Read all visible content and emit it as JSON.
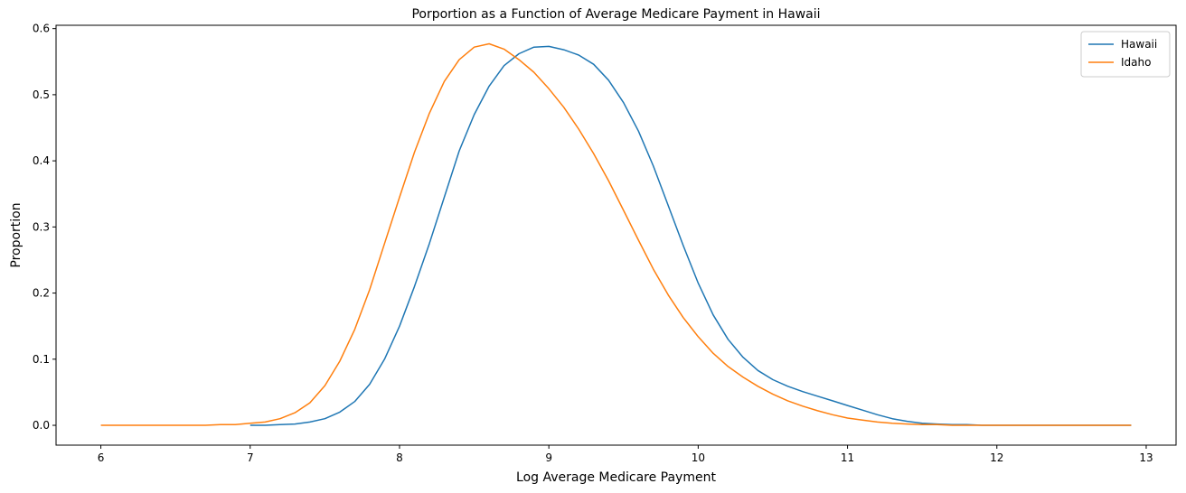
{
  "chart_data": {
    "type": "line",
    "title": "Porportion as a Function of Average Medicare Payment in Hawaii",
    "xlabel": "Log Average Medicare Payment",
    "ylabel": "Proportion",
    "xlim": [
      5.7,
      13.2
    ],
    "ylim": [
      -0.03,
      0.605
    ],
    "xticks": [
      6,
      7,
      8,
      9,
      10,
      11,
      12,
      13
    ],
    "yticks": [
      0.0,
      0.1,
      0.2,
      0.3,
      0.4,
      0.5,
      0.6
    ],
    "ytick_labels": [
      "0.0",
      "0.1",
      "0.2",
      "0.3",
      "0.4",
      "0.5",
      "0.6"
    ],
    "grid": false,
    "legend_position": "top-right",
    "series": [
      {
        "name": "Hawaii",
        "color": "#1f77b4",
        "x": [
          7.0,
          7.1,
          7.2,
          7.3,
          7.4,
          7.5,
          7.6,
          7.7,
          7.8,
          7.9,
          8.0,
          8.1,
          8.2,
          8.3,
          8.4,
          8.5,
          8.6,
          8.7,
          8.8,
          8.9,
          9.0,
          9.1,
          9.2,
          9.3,
          9.4,
          9.5,
          9.6,
          9.7,
          9.8,
          9.9,
          10.0,
          10.1,
          10.2,
          10.3,
          10.4,
          10.5,
          10.6,
          10.7,
          10.8,
          10.9,
          11.0,
          11.1,
          11.2,
          11.3,
          11.4,
          11.5,
          11.6,
          11.7,
          11.8,
          11.9,
          12.0,
          12.1,
          12.2,
          12.3,
          12.4,
          12.5,
          12.6,
          12.7,
          12.8,
          12.9
        ],
        "y": [
          0.0,
          0.0,
          0.001,
          0.002,
          0.005,
          0.01,
          0.02,
          0.036,
          0.062,
          0.1,
          0.15,
          0.21,
          0.275,
          0.345,
          0.415,
          0.47,
          0.513,
          0.544,
          0.562,
          0.572,
          0.573,
          0.568,
          0.56,
          0.546,
          0.522,
          0.488,
          0.445,
          0.392,
          0.332,
          0.272,
          0.215,
          0.167,
          0.13,
          0.103,
          0.083,
          0.069,
          0.059,
          0.051,
          0.044,
          0.037,
          0.03,
          0.023,
          0.016,
          0.01,
          0.006,
          0.003,
          0.002,
          0.001,
          0.001,
          0.0,
          0.0,
          0.0,
          0.0,
          0.0,
          0.0,
          0.0,
          0.0,
          0.0,
          0.0,
          0.0
        ]
      },
      {
        "name": "Idaho",
        "color": "#ff7f0e",
        "x": [
          6.0,
          6.1,
          6.2,
          6.3,
          6.4,
          6.5,
          6.6,
          6.7,
          6.8,
          6.9,
          7.0,
          7.1,
          7.2,
          7.3,
          7.4,
          7.5,
          7.6,
          7.7,
          7.8,
          7.9,
          8.0,
          8.1,
          8.2,
          8.3,
          8.4,
          8.5,
          8.6,
          8.7,
          8.8,
          8.9,
          9.0,
          9.1,
          9.2,
          9.3,
          9.4,
          9.5,
          9.6,
          9.7,
          9.8,
          9.9,
          10.0,
          10.1,
          10.2,
          10.3,
          10.4,
          10.5,
          10.6,
          10.7,
          10.8,
          10.9,
          11.0,
          11.1,
          11.2,
          11.3,
          11.4,
          11.5,
          11.6,
          11.7,
          11.8,
          11.9,
          12.0,
          12.1,
          12.2,
          12.3,
          12.4,
          12.5,
          12.6,
          12.7,
          12.8,
          12.9
        ],
        "y": [
          0.0,
          0.0,
          0.0,
          0.0,
          0.0,
          0.0,
          0.0,
          0.0,
          0.001,
          0.001,
          0.003,
          0.005,
          0.01,
          0.019,
          0.034,
          0.06,
          0.097,
          0.145,
          0.205,
          0.275,
          0.345,
          0.413,
          0.472,
          0.52,
          0.553,
          0.572,
          0.577,
          0.569,
          0.553,
          0.534,
          0.509,
          0.481,
          0.448,
          0.411,
          0.37,
          0.325,
          0.28,
          0.236,
          0.197,
          0.163,
          0.134,
          0.109,
          0.089,
          0.073,
          0.059,
          0.047,
          0.037,
          0.029,
          0.022,
          0.016,
          0.011,
          0.008,
          0.005,
          0.003,
          0.002,
          0.001,
          0.001,
          0.0,
          0.0,
          0.0,
          0.0,
          0.0,
          0.0,
          0.0,
          0.0,
          0.0,
          0.0,
          0.0,
          0.0,
          0.0
        ]
      }
    ]
  }
}
